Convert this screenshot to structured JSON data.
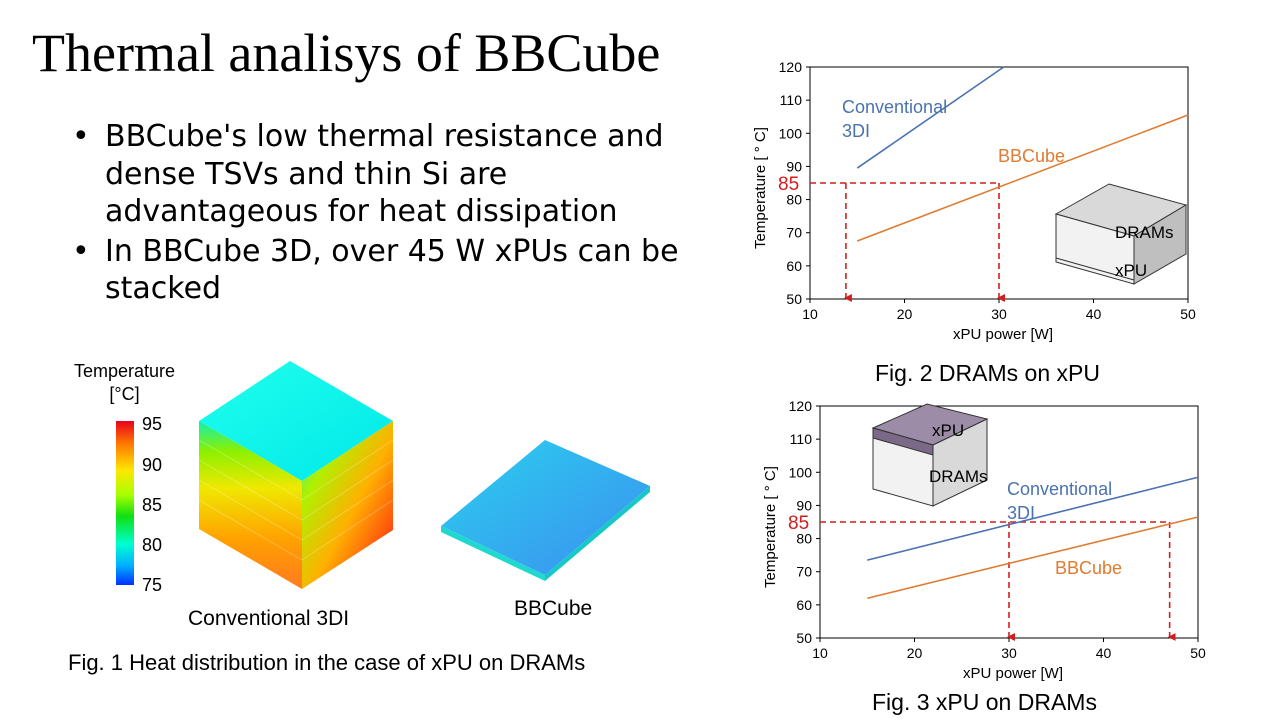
{
  "slide": {
    "title": "Thermal analisys of BBCube",
    "bullets": [
      "BBCube's low thermal resistance and dense TSVs and thin Si are advantageous for heat dissipation",
      "In BBCube 3D, over 45 W xPUs can be stacked"
    ],
    "bullet_char": "•"
  },
  "fig1": {
    "colorbar_title_1": "Temperature",
    "colorbar_title_2": "[°C]",
    "colorbar_ticks": [
      "95",
      "90",
      "85",
      "80",
      "75"
    ],
    "label_conventional": "Conventional 3DI",
    "label_bbcube": "BBCube",
    "caption": "Fig. 1 Heat distribution in the case of xPU on DRAMs"
  },
  "chart_data": [
    {
      "type": "line",
      "caption": "Fig. 2 DRAMs on xPU",
      "xlabel": "xPU power [W]",
      "ylabel": "Temperature [ ° C]",
      "xlim": [
        10,
        50
      ],
      "ylim": [
        50,
        120
      ],
      "xticks": [
        10,
        20,
        30,
        40,
        50
      ],
      "yticks": [
        50,
        60,
        70,
        80,
        90,
        100,
        110,
        120
      ],
      "threshold": 85,
      "threshold_label": "85",
      "arrows_at_x": [
        13.8,
        30
      ],
      "series": [
        {
          "name": "Conventional 3DI",
          "label_lines": [
            "Conventional",
            "3DI"
          ],
          "color": "#4a72b0",
          "x": [
            15,
            30.5
          ],
          "y": [
            89.5,
            120
          ]
        },
        {
          "name": "BBCube",
          "label_lines": [
            "BBCube"
          ],
          "color": "#e07b30",
          "x": [
            15,
            50
          ],
          "y": [
            67.5,
            105.5
          ]
        }
      ],
      "inset": {
        "top_label": "DRAMs",
        "bottom_label": "xPU"
      },
      "grid": false
    },
    {
      "type": "line",
      "caption": "Fig. 3 xPU on DRAMs",
      "xlabel": "xPU power [W]",
      "ylabel": "Temperature [ ° C]",
      "xlim": [
        10,
        50
      ],
      "ylim": [
        50,
        120
      ],
      "xticks": [
        10,
        20,
        30,
        40,
        50
      ],
      "yticks": [
        50,
        60,
        70,
        80,
        90,
        100,
        110,
        120
      ],
      "threshold": 85,
      "threshold_label": "85",
      "arrows_at_x": [
        30,
        47
      ],
      "series": [
        {
          "name": "Conventional 3DI",
          "label_lines": [
            "Conventional",
            "3DI"
          ],
          "color": "#4a72b0",
          "x": [
            15,
            50
          ],
          "y": [
            73.5,
            98.5
          ]
        },
        {
          "name": "BBCube",
          "label_lines": [
            "BBCube"
          ],
          "color": "#e07b30",
          "x": [
            15,
            50
          ],
          "y": [
            62,
            86.5
          ]
        }
      ],
      "inset": {
        "top_label": "xPU",
        "bottom_label": "DRAMs"
      },
      "grid": false
    }
  ],
  "colors": {
    "threshold": "#d21e1e",
    "axis": "#000000"
  }
}
